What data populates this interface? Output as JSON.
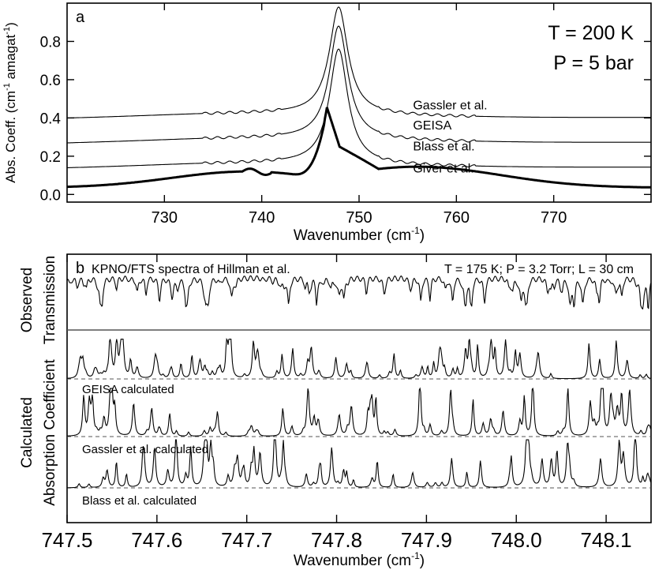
{
  "chart_data": [
    {
      "type": "line",
      "panel_label": "a",
      "xlabel_main": "Wavenumber (cm",
      "xlabel_sup": "-1",
      "xlabel_end": ")",
      "ylabel_main": "Abs. Coeff. (cm",
      "ylabel_sup1": "-1",
      "ylabel_mid": " amagat",
      "ylabel_sup2": "-1",
      "ylabel_end": ")",
      "xlim": [
        720,
        780
      ],
      "ylim": [
        -0.04,
        1.0
      ],
      "xticks": [
        730,
        740,
        750,
        760,
        770
      ],
      "xtick_labels": [
        "730",
        "740",
        "750",
        "760",
        "770"
      ],
      "yticks": [
        0.0,
        0.2,
        0.4,
        0.6,
        0.8
      ],
      "ytick_labels": [
        "0.0",
        "0.2",
        "0.4",
        "0.6",
        "0.8"
      ],
      "annotations": [
        "T = 200 K",
        "P = 5 bar"
      ],
      "grid": false,
      "series": [
        {
          "name": "Gassler et al.",
          "offset": 0.39,
          "peak": 1.0,
          "bold": false,
          "label_x": 752.3,
          "label_y": 0.47
        },
        {
          "name": "GEISA",
          "offset": 0.26,
          "peak": 0.9,
          "bold": false,
          "label_x": 752.3,
          "label_y": 0.365
        },
        {
          "name": "Blass et al.",
          "offset": 0.13,
          "peak": 0.78,
          "bold": false,
          "label_x": 752.3,
          "label_y": 0.255
        },
        {
          "name": "Giver et al.",
          "offset": 0.0,
          "peak": 0.48,
          "bold": true,
          "label_x": 752.3,
          "label_y": 0.14
        }
      ]
    },
    {
      "type": "line",
      "panel_label": "b",
      "xlabel_main": "Wavenumber (cm",
      "xlabel_sup": "-1",
      "xlabel_end": ")",
      "ylabel_left": "Calculated",
      "ylabel_right": "Absorption Coefficient",
      "ylabel_obs_left": "Observed",
      "ylabel_obs_right": "Transmission",
      "xlim": [
        747.5,
        748.15
      ],
      "xticks": [
        747.5,
        747.6,
        747.7,
        747.8,
        747.9,
        748.0,
        748.1
      ],
      "xtick_labels": [
        "747.5",
        "747.6",
        "747.7",
        "747.8",
        "747.9",
        "748.0",
        "748.1"
      ],
      "observed_title": "KPNO/FTS spectra of Hillman et al.",
      "observed_conditions": "T = 175 K;  P = 3.2 Torr;  L = 30 cm",
      "grid": false,
      "series": [
        {
          "name": "Observed Transmission",
          "kind": "transmission",
          "seed": 7
        },
        {
          "name": "GEISA calculated",
          "kind": "absorption",
          "seed": 11
        },
        {
          "name": "Gassler et al. calculated",
          "kind": "absorption",
          "seed": 23
        },
        {
          "name": "Blass et al. calculated",
          "kind": "absorption",
          "seed": 37
        }
      ],
      "series_labels": [
        "GEISA calculated",
        "Gassler et al. calculated",
        "Blass et al. calculated"
      ]
    }
  ]
}
